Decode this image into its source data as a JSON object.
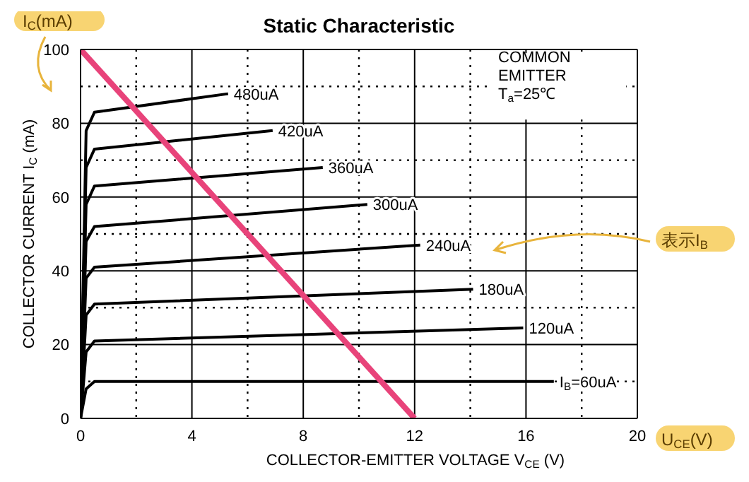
{
  "chart_data": {
    "type": "line",
    "title": "Static Characteristic",
    "xlabel": "COLLECTOR-EMITTER VOLTAGE   V$_{CE}$   (V)",
    "ylabel": "COLLECTOR CURRENT   I$_{C}$   (mA)",
    "series": [
      {
        "name": "480uA",
        "color": "#000000",
        "x": [
          0,
          0.2,
          0.5,
          5.3
        ],
        "values": [
          0,
          78,
          83,
          88
        ]
      },
      {
        "name": "420uA",
        "color": "#000000",
        "x": [
          0,
          0.2,
          0.5,
          6.9
        ],
        "values": [
          0,
          68,
          73,
          78
        ]
      },
      {
        "name": "360uA",
        "color": "#000000",
        "x": [
          0,
          0.2,
          0.5,
          8.7
        ],
        "values": [
          0,
          58,
          63,
          68
        ]
      },
      {
        "name": "300uA",
        "color": "#000000",
        "x": [
          0,
          0.2,
          0.5,
          10.3
        ],
        "values": [
          0,
          48,
          52,
          58
        ]
      },
      {
        "name": "240uA",
        "color": "#000000",
        "x": [
          0,
          0.2,
          0.5,
          12.2
        ],
        "values": [
          0,
          38,
          41,
          47
        ]
      },
      {
        "name": "180uA",
        "color": "#000000",
        "x": [
          0,
          0.2,
          0.5,
          14.1
        ],
        "values": [
          0,
          28,
          31,
          35
        ]
      },
      {
        "name": "120uA",
        "color": "#000000",
        "x": [
          0,
          0.2,
          0.5,
          15.9
        ],
        "values": [
          0,
          18,
          21,
          24.5
        ]
      },
      {
        "name": "I$_{B}$=60uA",
        "color": "#000000",
        "x": [
          0,
          0.2,
          0.5,
          17
        ],
        "values": [
          0,
          8,
          10,
          10
        ]
      },
      {
        "color": "#e8437a",
        "x": [
          0,
          12
        ],
        "values": [
          100,
          0
        ]
      }
    ],
    "xlim": [
      0,
      20
    ],
    "ylim": [
      0,
      100
    ],
    "xticks": [
      0,
      {
        "value": 2,
        "label": null
      },
      4,
      {
        "value": 6,
        "label": null
      },
      8,
      {
        "value": 10,
        "label": null
      },
      12,
      {
        "value": 14,
        "label": null
      },
      16,
      {
        "value": 18,
        "label": null
      },
      20
    ],
    "yticks": [
      0,
      {
        "value": 10,
        "label": null
      },
      20,
      {
        "value": 30,
        "label": null
      },
      40,
      {
        "value": 50,
        "label": null
      },
      60,
      {
        "value": 70,
        "label": null
      },
      80,
      {
        "value": 90,
        "label": null
      },
      100
    ],
    "grid": true,
    "marker": "none",
    "line_style": "solid",
    "annotations": [
      "COMMON\nEMITTER\nT$_{a}$=25℃",
      "I$_{C}$(mA)",
      "表示I$_{B}$",
      "U$_{CE}$(V)"
    ]
  }
}
